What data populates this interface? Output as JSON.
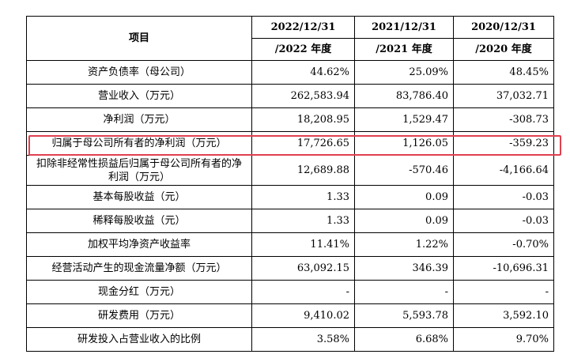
{
  "table": {
    "item_header": "项目",
    "year_headers_1": [
      "2022/12/31",
      "2021/12/31",
      "2020/12/31"
    ],
    "year_headers_2": [
      "/2022 年度",
      "/2021 年度",
      "/2020 年度"
    ],
    "rows": [
      {
        "label": "资产负债率（母公司）",
        "v1": "44.62%",
        "v2": "25.09%",
        "v3": "48.45%"
      },
      {
        "label": "营业收入（万元）",
        "v1": "262,583.94",
        "v2": "83,786.40",
        "v3": "37,032.71"
      },
      {
        "label": "净利润（万元）",
        "v1": "18,208.95",
        "v2": "1,529.47",
        "v3": "-308.73"
      },
      {
        "label": "归属于母公司所有者的净利润（万元）",
        "v1": "17,726.65",
        "v2": "1,126.05",
        "v3": "-359.23"
      },
      {
        "label": "扣除非经常性损益后归属于母公司所有者的净利润（万元）",
        "v1": "12,689.88",
        "v2": "-570.46",
        "v3": "-4,166.64"
      },
      {
        "label": "基本每股收益（元）",
        "v1": "1.33",
        "v2": "0.09",
        "v3": "-0.03"
      },
      {
        "label": "稀释每股收益（元）",
        "v1": "1.33",
        "v2": "0.09",
        "v3": "-0.03"
      },
      {
        "label": "加权平均净资产收益率",
        "v1": "11.41%",
        "v2": "1.22%",
        "v3": "-0.70%"
      },
      {
        "label": "经营活动产生的现金流量净额（万元）",
        "v1": "63,092.15",
        "v2": "346.39",
        "v3": "-10,696.31"
      },
      {
        "label": "现金分红（万元）",
        "v1": "-",
        "v2": "-",
        "v3": "-"
      },
      {
        "label": "研发费用（万元）",
        "v1": "9,410.02",
        "v2": "5,593.78",
        "v3": "3,592.10"
      },
      {
        "label": "研发投入占营业收入的比例",
        "v1": "3.58%",
        "v2": "6.68%",
        "v3": "9.70%"
      }
    ]
  },
  "highlight_color": "#e0404f"
}
